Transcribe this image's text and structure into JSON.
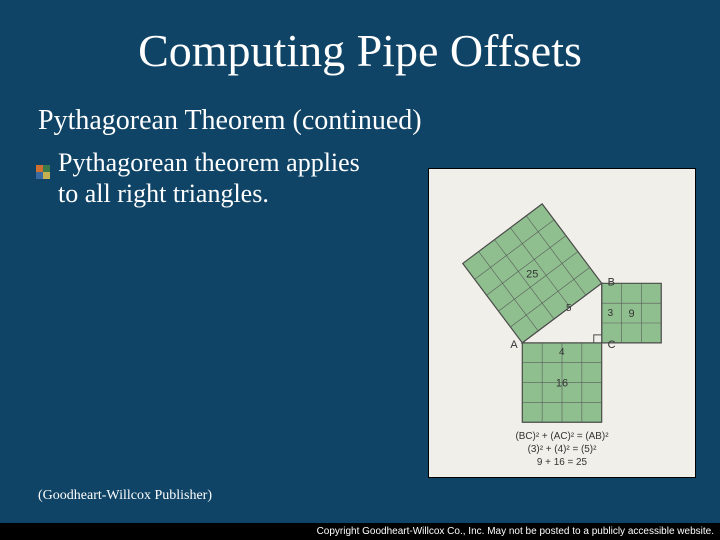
{
  "slide": {
    "title": "Computing Pipe Offsets",
    "subtitle": "Pythagorean Theorem (continued)",
    "body": "Pythagorean theorem applies to all right triangles.",
    "attribution": "(Goodheart-Willcox Publisher)",
    "copyright": "Copyright Goodheart-Willcox Co., Inc.  May not be posted to a publicly accessible website."
  },
  "diagram": {
    "background": "#f1efe9",
    "square_fill": "#8fbf8f",
    "square_stroke": "#4a4a4a",
    "grid_stroke": "#5a5a5a",
    "text_color": "#333333",
    "triangle": {
      "a": 4,
      "b": 3,
      "c": 5
    },
    "labels": {
      "A": "A",
      "B": "B",
      "C": "C",
      "top_sq": "25",
      "right_sq": "9",
      "bottom_sq": "16",
      "side_a": "4",
      "side_b": "3",
      "side_c": "5"
    },
    "formulas": [
      "(BC)² + (AC)² = (AB)²",
      "(3)² + (4)² = (5)²",
      "9 + 16 = 25"
    ]
  },
  "colors": {
    "page_bg": "#104466",
    "text": "#ffffff",
    "bar_bg": "#000000"
  }
}
